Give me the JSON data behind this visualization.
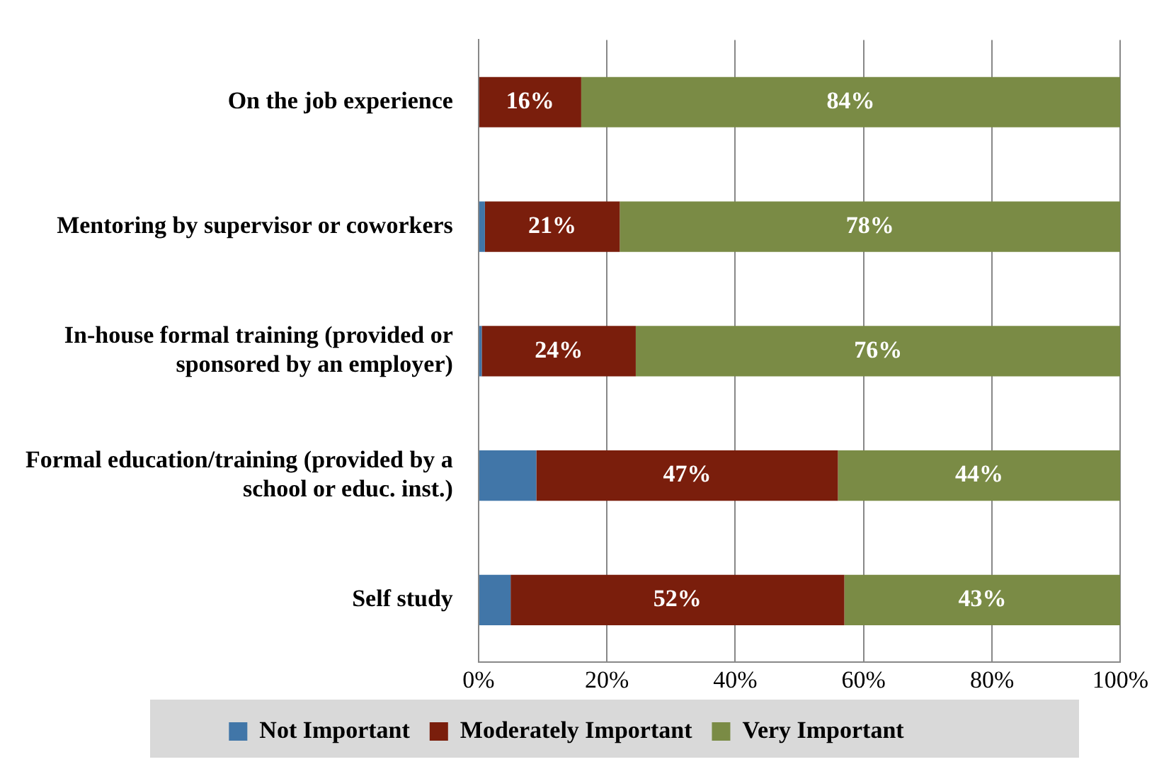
{
  "chart_data": {
    "type": "bar",
    "orientation": "horizontal",
    "stacked": true,
    "categories": [
      "On the job experience",
      "Mentoring by supervisor or coworkers",
      "In-house formal training (provided or sponsored by an employer)",
      "Formal education/training (provided by a school or educ. inst.)",
      "Self study"
    ],
    "series": [
      {
        "name": "Not Important",
        "color": "#4176a8",
        "values": [
          0,
          1,
          0.5,
          9,
          5
        ],
        "value_labels": [
          null,
          null,
          null,
          null,
          null
        ]
      },
      {
        "name": "Moderately Important",
        "color": "#7a1e0c",
        "values": [
          16,
          21,
          24,
          47,
          52
        ],
        "value_labels": [
          "16%",
          "21%",
          "24%",
          "47%",
          "52%"
        ]
      },
      {
        "name": "Very Important",
        "color": "#7a8b45",
        "values": [
          84,
          78,
          75.5,
          44,
          43
        ],
        "value_labels": [
          "84%",
          "78%",
          "76%",
          "44%",
          "43%"
        ]
      }
    ],
    "xlim": [
      0,
      100
    ],
    "xticks": [
      {
        "value": 0,
        "label": "0%"
      },
      {
        "value": 20,
        "label": "20%"
      },
      {
        "value": 40,
        "label": "40%"
      },
      {
        "value": 60,
        "label": "60%"
      },
      {
        "value": 80,
        "label": "80%"
      },
      {
        "value": 100,
        "label": "100%"
      }
    ],
    "grid": "x",
    "legend": "bottom"
  }
}
